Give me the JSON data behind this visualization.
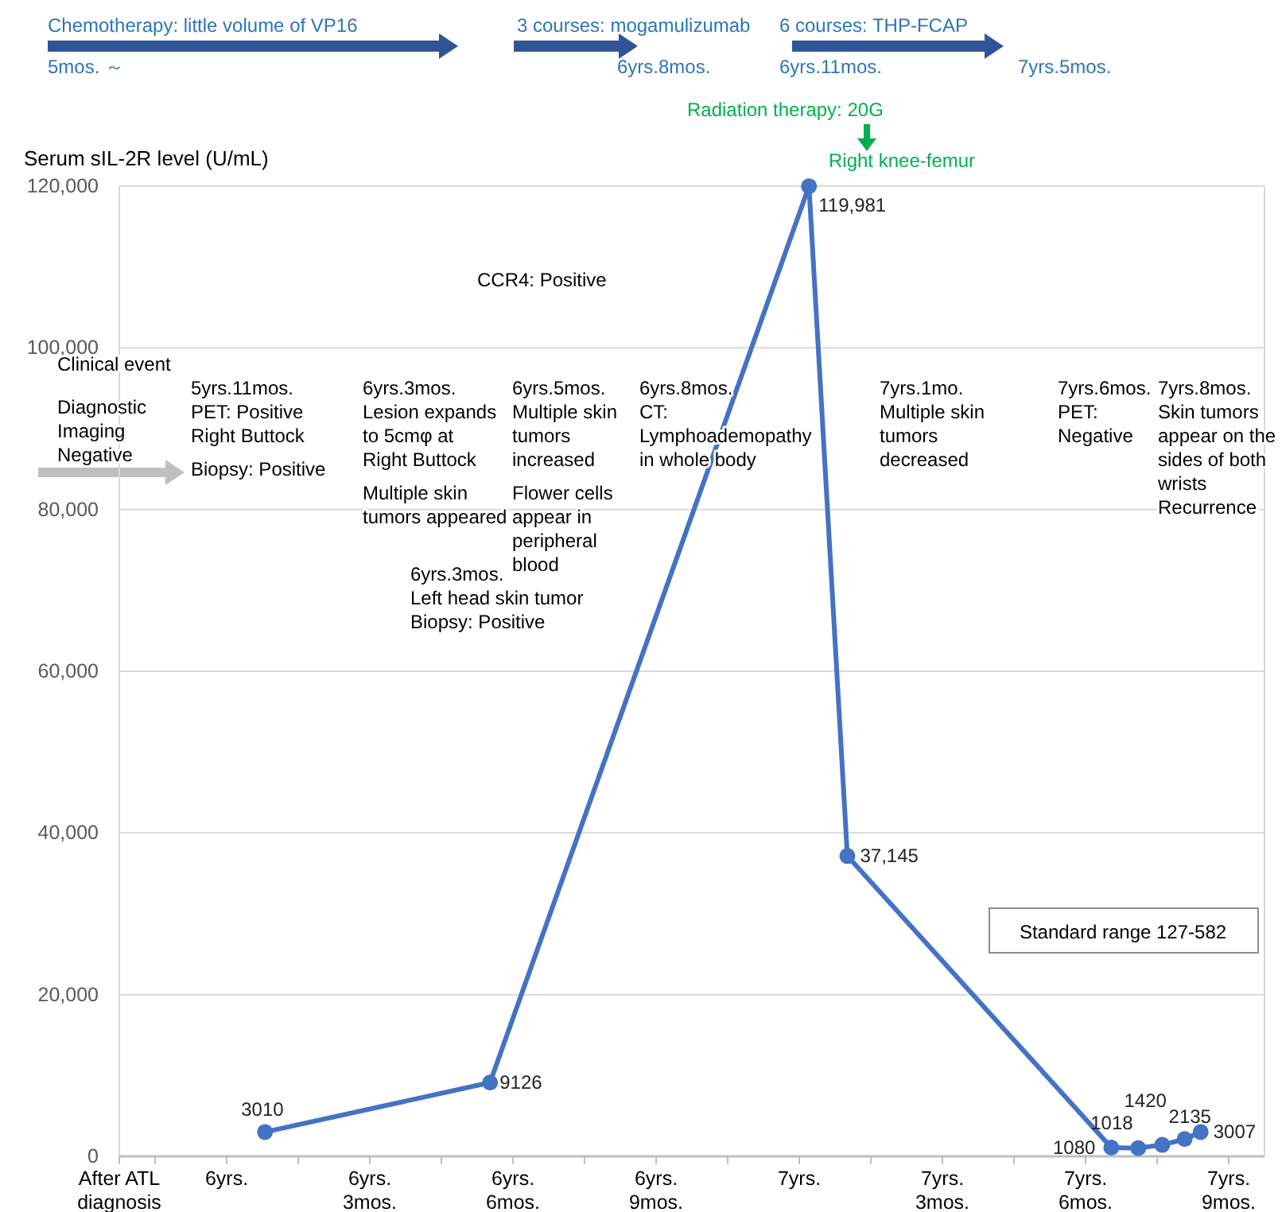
{
  "chart_data": {
    "type": "line",
    "ylabel": "Serum sIL-2R level (U/mL)",
    "x": [
      6.067,
      6.46,
      7.017,
      7.084,
      7.545,
      7.592,
      7.634,
      7.673,
      7.701
    ],
    "series": [
      {
        "color": "#4472c4",
        "values": [
          3010,
          9126,
          119981,
          37145,
          1080,
          1018,
          1420,
          2135,
          3007
        ],
        "value_labels": [
          "3010",
          "9126",
          "119,981",
          "37,145",
          "1080",
          "1018",
          "1420",
          "2135",
          "3007"
        ]
      }
    ],
    "xlim": [
      5.8125,
      7.8125
    ],
    "xticks": [
      {
        "value": 5.8125,
        "label": "After ATL\ndiagnosis"
      },
      {
        "value": 5.875,
        "label": null
      },
      {
        "value": 6,
        "label": "6yrs."
      },
      {
        "value": 6.125,
        "label": null
      },
      {
        "value": 6.25,
        "label": "6yrs.\n3mos."
      },
      {
        "value": 6.375,
        "label": null
      },
      {
        "value": 6.5,
        "label": "6yrs.\n6mos."
      },
      {
        "value": 6.625,
        "label": null
      },
      {
        "value": 6.75,
        "label": "6yrs.\n9mos."
      },
      {
        "value": 6.875,
        "label": null
      },
      {
        "value": 7,
        "label": "7yrs."
      },
      {
        "value": 7.125,
        "label": null
      },
      {
        "value": 7.25,
        "label": "7yrs.\n3mos."
      },
      {
        "value": 7.375,
        "label": null
      },
      {
        "value": 7.5,
        "label": "7yrs.\n6mos."
      },
      {
        "value": 7.625,
        "label": null
      },
      {
        "value": 7.75,
        "label": "7yrs.\n9mos."
      }
    ],
    "ylim": [
      0,
      120000
    ],
    "yticks": [
      {
        "value": 0,
        "label": "0"
      },
      {
        "value": 20000,
        "label": "20,000"
      },
      {
        "value": 40000,
        "label": "40,000"
      },
      {
        "value": 60000,
        "label": "60,000"
      },
      {
        "value": 80000,
        "label": "80,000"
      },
      {
        "value": 100000,
        "label": "100,000"
      },
      {
        "value": 120000,
        "label": "120,000"
      }
    ],
    "grid": "y",
    "marker": "circle",
    "line_style": "solid",
    "annotations": [
      "Chemotherapy: little volume of VP16",
      "5mos. ～",
      "3 courses: mogamulizumab",
      "6yrs.8mos.",
      "6 courses: THP-FCAP",
      "6yrs.11mos.",
      "7yrs.5mos.",
      "Radiation therapy: 20G",
      "Right knee-femur",
      "CCR4: Positive",
      "Clinical event",
      "Diagnostic\nImaging\nNegative",
      "5yrs.11mos.\nPET: Positive\nRight Buttock",
      "Biopsy: Positive",
      "6yrs.3mos.\nLesion expands\nto 5cmφ at\nRight Buttock",
      "Multiple skin\ntumors appeared",
      "6yrs.5mos.\nMultiple skin\ntumors\nincreased",
      "Flower cells\nappear in\nperipheral\nblood",
      "6yrs.3mos.\nLeft head skin tumor\nBiopsy: Positive",
      "6yrs.8mos.\nCT:\nLymphoademopathy\nin whole body",
      "7yrs.1mo.\nMultiple skin\ntumors\ndecreased",
      "7yrs.6mos.\nPET:\nNegative",
      "7yrs.8mos.\nSkin tumors\nappear on the\nsides of both\nwrists\nRecurrence",
      "Standard range 127-582"
    ]
  }
}
